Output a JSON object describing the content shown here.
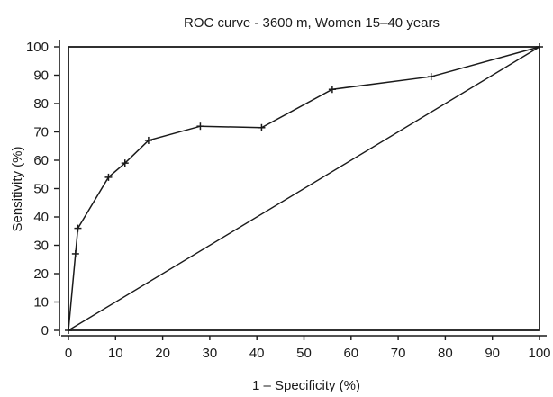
{
  "chart_data": {
    "type": "line",
    "title": "ROC curve - 3600 m, Women 15–40 years",
    "xlabel": "1 – Specificity (%)",
    "ylabel": "Sensitivity (%)",
    "xlim": [
      0,
      100
    ],
    "ylim": [
      0,
      100
    ],
    "xticks": [
      "0",
      "10",
      "20",
      "30",
      "40",
      "50",
      "60",
      "70",
      "80",
      "90",
      "100"
    ],
    "yticks": [
      "0",
      "10",
      "20",
      "30",
      "40",
      "50",
      "60",
      "70",
      "80",
      "90",
      "100"
    ],
    "grid": false,
    "legend": "none",
    "series": [
      {
        "style": "solid line with plus markers",
        "x": [
          0,
          1.5,
          2,
          8.5,
          12,
          17,
          28,
          41,
          56,
          77,
          100
        ],
        "y": [
          0,
          27,
          36,
          54,
          59,
          67,
          72,
          71.5,
          85,
          89.5,
          100
        ]
      },
      {
        "style": "solid line, no markers",
        "x": [
          0,
          100
        ],
        "y": [
          0,
          100
        ]
      }
    ],
    "frame": {
      "style": "rectangle",
      "x": [
        0,
        100
      ],
      "y": [
        0,
        100
      ]
    }
  }
}
